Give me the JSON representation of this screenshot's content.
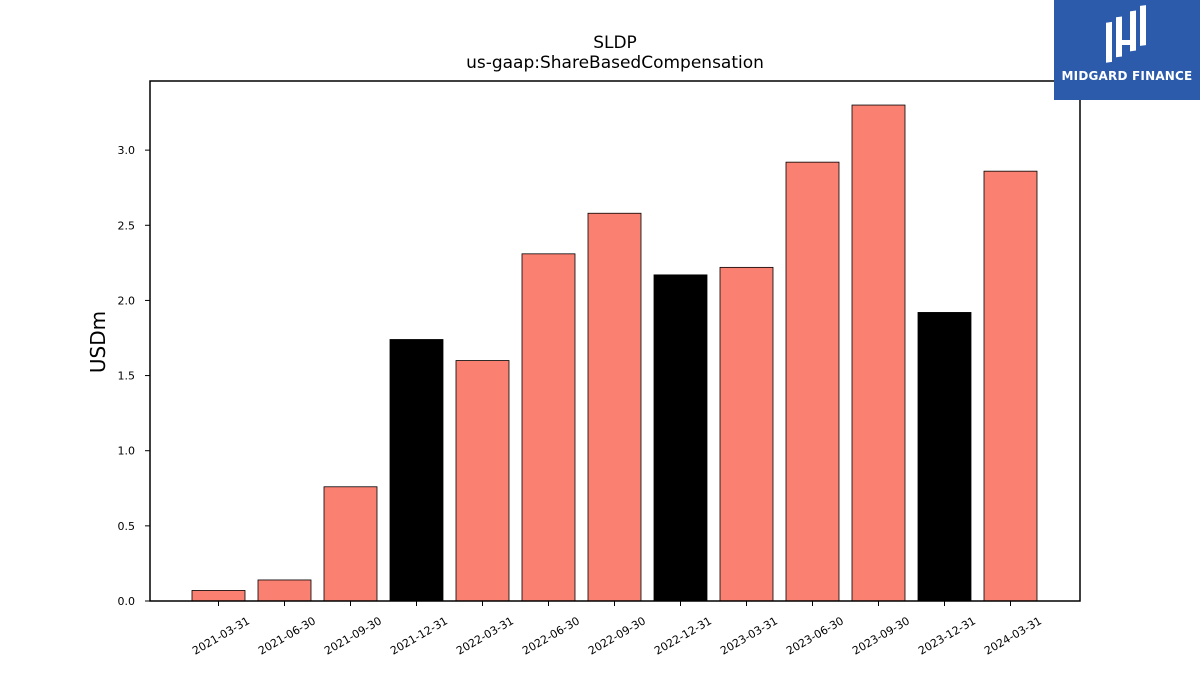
{
  "brand": {
    "name": "MIDGARD FINANCE",
    "color": "#2c5bab"
  },
  "chart_data": {
    "type": "bar",
    "title": "SLDP",
    "subtitle": "us-gaap:ShareBasedCompensation",
    "xlabel": "",
    "ylabel": "USDm",
    "categories": [
      "2021-03-31",
      "2021-06-30",
      "2021-09-30",
      "2021-12-31",
      "2022-03-31",
      "2022-06-30",
      "2022-09-30",
      "2022-12-31",
      "2023-03-31",
      "2023-06-30",
      "2023-09-30",
      "2023-12-31",
      "2024-03-31"
    ],
    "values": [
      0.07,
      0.14,
      0.76,
      1.74,
      1.6,
      2.31,
      2.58,
      2.17,
      2.22,
      2.92,
      3.3,
      1.92,
      2.86
    ],
    "bar_colors": [
      "#fa8072",
      "#fa8072",
      "#fa8072",
      "#000000",
      "#fa8072",
      "#fa8072",
      "#fa8072",
      "#000000",
      "#fa8072",
      "#fa8072",
      "#fa8072",
      "#000000",
      "#fa8072"
    ],
    "ylim": [
      0,
      3.46
    ],
    "yticks": [
      "0.0",
      "0.5",
      "1.0",
      "1.5",
      "2.0",
      "2.5",
      "3.0"
    ],
    "grid": false,
    "legend": "none"
  }
}
